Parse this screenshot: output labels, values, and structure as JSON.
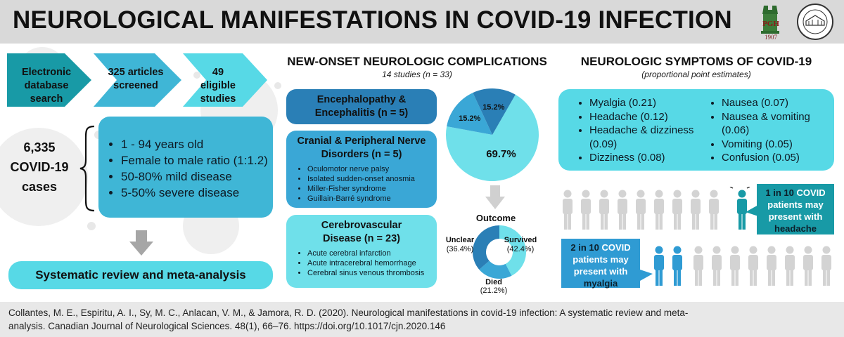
{
  "header": {
    "title": "NEUROLOGICAL MANIFESTATIONS IN COVID-19 INFECTION",
    "logos": [
      {
        "name": "up-pgh-logo",
        "text": "PGH",
        "year": "1907"
      },
      {
        "name": "neurology-seal-logo",
        "text": "DEPARTMENT OF NEUROSCIENCES UP-PGH"
      }
    ]
  },
  "flow": {
    "steps": [
      "Electronic database search",
      "325 articles screened",
      "49 eligible studies"
    ],
    "cases": [
      "6,335",
      "COVID-19",
      "cases"
    ],
    "characteristics": [
      "1 - 94 years old",
      "Female to male ratio (1:1.2)",
      "50-80% mild disease",
      "5-50% severe disease"
    ],
    "conclusion": "Systematic review and meta-analysis"
  },
  "complications": {
    "title": "NEW-ONSET NEUROLOGIC COMPLICATIONS",
    "subtitle": "14 studies (n = 33)",
    "categories": [
      {
        "title": "Encephalopathy & Encephalitis (n = 5)",
        "items": []
      },
      {
        "title": "Cranial & Peripheral Nerve Disorders (n = 5)",
        "items": [
          "Oculomotor nerve palsy",
          "Isolated sudden-onset anosmia",
          "Miller-Fisher syndrome",
          "Guillain-Barré syndrome"
        ]
      },
      {
        "title": "Cerebrovascular Disease (n = 23)",
        "items": [
          "Acute cerebral infarction",
          "Acute intracerebral hemorrhage",
          "Cerebral sinus venous thrombosis"
        ]
      }
    ],
    "pie": {
      "labels": [
        "69.7%",
        "15.2%",
        "15.2%"
      ],
      "values": [
        69.7,
        15.2,
        15.2
      ],
      "colors": [
        "#6fe0ea",
        "#3aa7d6",
        "#2a7fb6"
      ]
    },
    "outcome": {
      "title": "Outcome",
      "segments": [
        {
          "label": "Survived",
          "pct": "(42.4%)",
          "value": 42.4,
          "color": "#6fe0ea"
        },
        {
          "label": "Died",
          "pct": "(21.2%)",
          "value": 21.2,
          "color": "#3aa7d6"
        },
        {
          "label": "Unclear",
          "pct": "(36.4%)",
          "value": 36.4,
          "color": "#2a7fb6"
        }
      ]
    }
  },
  "symptoms": {
    "title": "NEUROLOGIC SYMPTOMS OF COVID-19",
    "subtitle": "(proportional point estimates)",
    "left": [
      "Myalgia (0.21)",
      "Headache (0.12)",
      "Headache & dizziness (0.09)",
      "Dizziness (0.08)"
    ],
    "right": [
      "Nausea (0.07)",
      "Nausea & vomiting (0.06)",
      "Vomiting (0.05)",
      "Confusion (0.05)"
    ],
    "headache_callout": {
      "highlight": "1 in 10",
      "rest": "COVID patients may present with",
      "symptom": "headache"
    },
    "myalgia_callout": {
      "highlight": "2 in 10",
      "rest": "COVID patients may present with",
      "symptom": "myalgia"
    }
  },
  "citation": "Collantes, M. E., Espiritu, A. I., Sy, M. C., Anlacan, V. M., & Jamora, R. D. (2020). Neurological manifestations in covid-19 infection: A systematic review and meta-analysis. Canadian Journal of Neurological Sciences. 48(1), 66–76. https://doi.org/10.1017/cjn.2020.146",
  "colors": {
    "header_bg": "#d9d9d9",
    "dark_teal": "#189aa6",
    "mid_teal": "#3fb6d6",
    "light_cyan": "#57d9e6",
    "blue": "#2a7fb6",
    "person_gray": "#d3d3d3",
    "arrow_gray": "#a6a6a6"
  }
}
